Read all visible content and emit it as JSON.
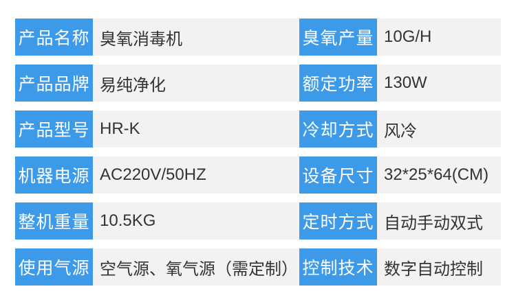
{
  "colors": {
    "label_bg": "#3d9ae8",
    "label_text": "#ffffff",
    "value_bg": "#f2f2f2",
    "value_text": "#333333",
    "page_bg": "#ffffff"
  },
  "spec_table": {
    "left_rows": [
      {
        "label": "产品名称",
        "value": "臭氧消毒机"
      },
      {
        "label": "产品品牌",
        "value": "易纯净化"
      },
      {
        "label": "产品型号",
        "value": "HR-K"
      },
      {
        "label": "机器电源",
        "value": "AC220V/50HZ"
      },
      {
        "label": "整机重量",
        "value": "10.5KG"
      },
      {
        "label": "使用气源",
        "value": "空气源、氧气源（需定制）"
      }
    ],
    "right_rows": [
      {
        "label": "臭氧产量",
        "value": "10G/H"
      },
      {
        "label": "额定功率",
        "value": "130W"
      },
      {
        "label": "冷却方式",
        "value": "风冷"
      },
      {
        "label": "设备尺寸",
        "value": "32*25*64(CM)"
      },
      {
        "label": "定时方式",
        "value": "自动手动双式"
      },
      {
        "label": "控制技术",
        "value": "数字自动控制"
      }
    ]
  }
}
